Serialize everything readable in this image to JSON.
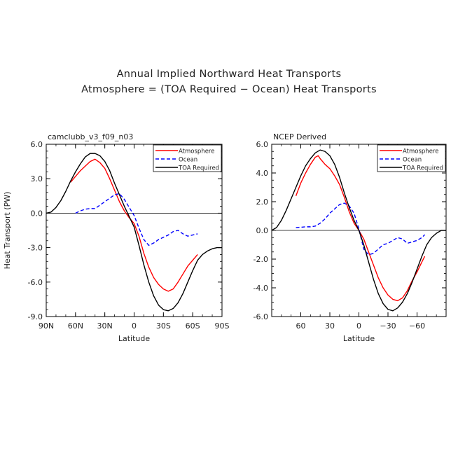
{
  "figure": {
    "title_line1": "Annual Implied Northward Heat Transports",
    "title_line2": "Atmosphere = (TOA Required − Ocean) Heat Transports"
  },
  "chart_data": [
    {
      "type": "line",
      "title": "camclubb_v3_f09_n03",
      "xlabel": "Latitude",
      "ylabel": "Heat Transport (PW)",
      "xlim": [
        90,
        -90
      ],
      "ylim": [
        -9,
        6
      ],
      "x_ticks": [
        90,
        60,
        30,
        0,
        -30,
        -60,
        -90
      ],
      "x_tick_labels": [
        "90N",
        "60N",
        "30N",
        "0",
        "30S",
        "60S",
        "90S"
      ],
      "y_ticks": [
        6,
        3,
        0,
        -3,
        -6,
        -9
      ],
      "y_tick_labels": [
        "6.0",
        "3.0",
        "0.0",
        "-3.0",
        "-6.0",
        "-9.0"
      ],
      "zero_line": true,
      "legend_position": "top-right",
      "series": [
        {
          "name": "Atmosphere",
          "color": "#ff0000",
          "dash": "solid",
          "x": [
            65,
            55,
            45,
            40,
            35,
            30,
            25,
            20,
            15,
            10,
            5,
            3,
            0,
            -5,
            -10,
            -15,
            -20,
            -25,
            -30,
            -35,
            -40,
            -45,
            -50,
            -55,
            -60,
            -65
          ],
          "y": [
            2.7,
            3.7,
            4.5,
            4.7,
            4.4,
            3.9,
            3.0,
            2.0,
            1.0,
            0.2,
            -0.4,
            -0.6,
            -0.9,
            -2.0,
            -3.5,
            -4.7,
            -5.6,
            -6.2,
            -6.6,
            -6.8,
            -6.6,
            -6.0,
            -5.3,
            -4.6,
            -4.1,
            -3.6
          ]
        },
        {
          "name": "Ocean",
          "color": "#0000ff",
          "dash": "dashed",
          "x": [
            60,
            55,
            50,
            45,
            40,
            35,
            30,
            25,
            20,
            15,
            10,
            5,
            0,
            -5,
            -10,
            -15,
            -20,
            -25,
            -30,
            -35,
            -40,
            -45,
            -50,
            -55,
            -60,
            -65
          ],
          "y": [
            0.0,
            0.2,
            0.35,
            0.4,
            0.4,
            0.7,
            1.0,
            1.3,
            1.6,
            1.7,
            1.2,
            0.5,
            -0.2,
            -1.3,
            -2.3,
            -2.8,
            -2.6,
            -2.3,
            -2.1,
            -1.9,
            -1.6,
            -1.5,
            -1.8,
            -2.0,
            -1.9,
            -1.8
          ]
        },
        {
          "name": "TOA Required",
          "color": "#000000",
          "dash": "solid",
          "x": [
            90,
            85,
            80,
            75,
            70,
            65,
            60,
            55,
            50,
            45,
            40,
            35,
            30,
            25,
            20,
            15,
            10,
            5,
            0,
            -5,
            -10,
            -15,
            -20,
            -25,
            -30,
            -35,
            -40,
            -45,
            -50,
            -55,
            -60,
            -65,
            -70,
            -75,
            -80,
            -85,
            -90
          ],
          "y": [
            0.0,
            0.1,
            0.5,
            1.1,
            1.9,
            2.8,
            3.6,
            4.3,
            4.9,
            5.2,
            5.2,
            5.0,
            4.5,
            3.7,
            2.6,
            1.6,
            0.6,
            -0.3,
            -1.2,
            -2.8,
            -4.5,
            -6.0,
            -7.2,
            -8.0,
            -8.4,
            -8.5,
            -8.3,
            -7.8,
            -7.0,
            -6.0,
            -5.0,
            -4.1,
            -3.6,
            -3.3,
            -3.1,
            -3.0,
            -3.0
          ]
        }
      ]
    },
    {
      "type": "line",
      "title": "NCEP Derived",
      "xlabel": "Latitude",
      "ylabel": "",
      "xlim": [
        90,
        -90
      ],
      "ylim": [
        -6,
        6
      ],
      "x_ticks": [
        60,
        30,
        0,
        -30,
        -60
      ],
      "x_tick_labels": [
        "60",
        "30",
        "0",
        "−30",
        "−60"
      ],
      "y_ticks": [
        6,
        4,
        2,
        0,
        -2,
        -4,
        -6
      ],
      "y_tick_labels": [
        "6.0",
        "4.0",
        "2.0",
        "0.0",
        "-2.0",
        "-4.0",
        "-6.0"
      ],
      "zero_line": true,
      "legend_position": "top-right",
      "series": [
        {
          "name": "Atmosphere",
          "color": "#ff0000",
          "dash": "solid",
          "x": [
            65,
            60,
            55,
            50,
            45,
            42,
            40,
            35,
            30,
            25,
            20,
            15,
            10,
            5,
            0,
            -5,
            -10,
            -15,
            -20,
            -25,
            -30,
            -35,
            -40,
            -45,
            -50,
            -55,
            -60,
            -65,
            -68
          ],
          "y": [
            2.4,
            3.3,
            4.0,
            4.6,
            5.1,
            5.2,
            5.0,
            4.6,
            4.3,
            3.8,
            3.2,
            2.3,
            1.3,
            0.5,
            0.0,
            -0.6,
            -1.5,
            -2.4,
            -3.3,
            -4.0,
            -4.5,
            -4.8,
            -4.9,
            -4.7,
            -4.2,
            -3.5,
            -2.9,
            -2.2,
            -1.8
          ]
        },
        {
          "name": "Ocean",
          "color": "#0000ff",
          "dash": "dashed",
          "x": [
            65,
            60,
            55,
            50,
            45,
            40,
            35,
            30,
            25,
            20,
            15,
            10,
            5,
            0,
            -5,
            -10,
            -15,
            -20,
            -25,
            -30,
            -35,
            -40,
            -45,
            -50,
            -55,
            -60,
            -65,
            -68
          ],
          "y": [
            0.2,
            0.22,
            0.25,
            0.25,
            0.3,
            0.5,
            0.8,
            1.2,
            1.5,
            1.8,
            1.9,
            1.7,
            1.2,
            0.1,
            -1.3,
            -1.7,
            -1.6,
            -1.3,
            -1.0,
            -0.9,
            -0.7,
            -0.5,
            -0.6,
            -0.9,
            -0.8,
            -0.7,
            -0.5,
            -0.3
          ]
        },
        {
          "name": "TOA Required",
          "color": "#000000",
          "dash": "solid",
          "x": [
            90,
            85,
            80,
            75,
            70,
            65,
            60,
            55,
            50,
            45,
            40,
            35,
            30,
            25,
            20,
            15,
            10,
            5,
            0,
            -5,
            -10,
            -15,
            -20,
            -25,
            -30,
            -35,
            -40,
            -45,
            -50,
            -55,
            -60,
            -65,
            -70,
            -75,
            -80,
            -85,
            -90
          ],
          "y": [
            0.0,
            0.2,
            0.7,
            1.4,
            2.2,
            3.0,
            3.8,
            4.5,
            5.0,
            5.4,
            5.6,
            5.5,
            5.2,
            4.6,
            3.7,
            2.6,
            1.6,
            0.7,
            0.0,
            -1.0,
            -2.2,
            -3.4,
            -4.4,
            -5.1,
            -5.5,
            -5.6,
            -5.4,
            -5.0,
            -4.4,
            -3.6,
            -2.7,
            -1.8,
            -1.0,
            -0.5,
            -0.2,
            0.0,
            0.0
          ]
        }
      ]
    }
  ]
}
